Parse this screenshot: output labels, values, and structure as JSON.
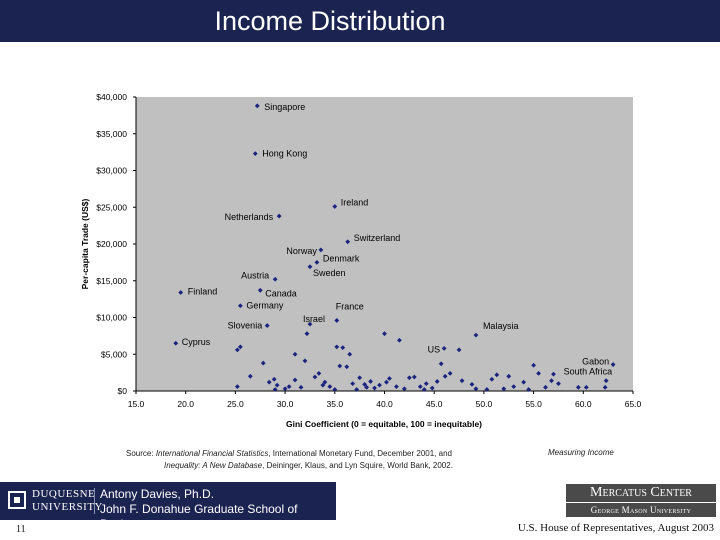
{
  "slide": {
    "title": "Income Distribution",
    "page_number": "11",
    "footer_note": "U.S. House of Representatives, August 2003"
  },
  "source": {
    "prefix": "Source:",
    "ref1": "International Financial Statistics",
    "ref1_rest": ", International Monetary Fund, December 2001, and",
    "ref3": "Measuring Income",
    "ref2": "Inequality: A New Database",
    "ref2_rest": ", Deininger, Klaus, and Lyn Squire, World Bank, 2002."
  },
  "footer": {
    "institution_line1": "DUQUESNE",
    "institution_line2": "UNIVERSITY",
    "author_line1": "Antony Davies, Ph.D.",
    "author_line2": "John F. Donahue Graduate School of Business",
    "center_line1": "Mercatus Center",
    "center_line2": "George Mason University"
  },
  "colors": {
    "title_bar": "#1b2450",
    "plot_area": "#c0c0c0",
    "marker": "#1a237e"
  },
  "chart_data": {
    "type": "scatter",
    "title": "",
    "xlabel": "Gini Coefficient (0 = equitable, 100 = inequitable)",
    "ylabel": "Per-capita Trade (US$)",
    "xlim": [
      15,
      65
    ],
    "ylim": [
      0,
      40000
    ],
    "x_ticks": [
      15,
      20,
      25,
      30,
      35,
      40,
      45,
      50,
      55,
      60,
      65
    ],
    "x_tick_labels": [
      "15.0",
      "20.0",
      "25.0",
      "30.0",
      "35.0",
      "40.0",
      "45.0",
      "50.0",
      "55.0",
      "60.0",
      "65.0"
    ],
    "y_ticks": [
      0,
      5000,
      10000,
      15000,
      20000,
      25000,
      30000,
      35000,
      40000
    ],
    "y_tick_labels": [
      "$0",
      "$5,000",
      "$10,000",
      "$15,000",
      "$20,000",
      "$25,000",
      "$30,000",
      "$35,000",
      "$40,000"
    ],
    "grid": false,
    "labeled_points": [
      {
        "label": "Singapore",
        "x": 27.2,
        "y": 38800
      },
      {
        "label": "Hong Kong",
        "x": 27.0,
        "y": 32300
      },
      {
        "label": "Ireland",
        "x": 35.0,
        "y": 25100
      },
      {
        "label": "Netherlands",
        "x": 29.4,
        "y": 23800
      },
      {
        "label": "Switzerland",
        "x": 36.3,
        "y": 20300
      },
      {
        "label": "Norway",
        "x": 33.6,
        "y": 19200
      },
      {
        "label": "Denmark",
        "x": 33.2,
        "y": 17500
      },
      {
        "label": "Sweden",
        "x": 32.5,
        "y": 16900
      },
      {
        "label": "Austria",
        "x": 29.0,
        "y": 15200
      },
      {
        "label": "Finland",
        "x": 19.5,
        "y": 13400
      },
      {
        "label": "Canada",
        "x": 27.5,
        "y": 13700
      },
      {
        "label": "Germany",
        "x": 25.5,
        "y": 11600
      },
      {
        "label": "France",
        "x": 35.2,
        "y": 9600
      },
      {
        "label": "Israel",
        "x": 32.5,
        "y": 9100
      },
      {
        "label": "Slovenia",
        "x": 28.2,
        "y": 8900
      },
      {
        "label": "Malaysia",
        "x": 49.2,
        "y": 7600
      },
      {
        "label": "Cyprus",
        "x": 19.0,
        "y": 6500
      },
      {
        "label": "US",
        "x": 46.0,
        "y": 5800
      },
      {
        "label": "Gabon",
        "x": 63.0,
        "y": 3600
      },
      {
        "label": "South Africa",
        "x": 62.3,
        "y": 1400
      }
    ],
    "points": [
      [
        25.5,
        6000
      ],
      [
        25.2,
        5600
      ],
      [
        27.8,
        3800
      ],
      [
        26.5,
        2000
      ],
      [
        25.2,
        600
      ],
      [
        28.4,
        1200
      ],
      [
        29.2,
        800
      ],
      [
        30.4,
        600
      ],
      [
        31.0,
        5000
      ],
      [
        32.0,
        4100
      ],
      [
        32.2,
        7800
      ],
      [
        33.0,
        1900
      ],
      [
        33.4,
        2400
      ],
      [
        31.6,
        500
      ],
      [
        34.0,
        1200
      ],
      [
        34.5,
        600
      ],
      [
        35.5,
        3400
      ],
      [
        35.2,
        6000
      ],
      [
        35.8,
        5900
      ],
      [
        36.2,
        3300
      ],
      [
        36.5,
        5000
      ],
      [
        36.8,
        1000
      ],
      [
        37.5,
        1800
      ],
      [
        38.2,
        500
      ],
      [
        38.6,
        1300
      ],
      [
        39.0,
        400
      ],
      [
        39.5,
        800
      ],
      [
        40.0,
        7800
      ],
      [
        40.5,
        1700
      ],
      [
        41.2,
        600
      ],
      [
        41.5,
        6900
      ],
      [
        42.0,
        300
      ],
      [
        42.5,
        1800
      ],
      [
        43.0,
        1900
      ],
      [
        43.6,
        600
      ],
      [
        44.2,
        1000
      ],
      [
        44.8,
        400
      ],
      [
        45.3,
        1300
      ],
      [
        45.7,
        3700
      ],
      [
        46.1,
        2000
      ],
      [
        47.5,
        5600
      ],
      [
        47.8,
        1400
      ],
      [
        48.8,
        900
      ],
      [
        49.2,
        300
      ],
      [
        50.3,
        200
      ],
      [
        50.8,
        1600
      ],
      [
        51.3,
        2200
      ],
      [
        52.5,
        2000
      ],
      [
        54.0,
        1200
      ],
      [
        54.5,
        200
      ],
      [
        55.0,
        3500
      ],
      [
        55.5,
        2400
      ],
      [
        56.2,
        500
      ],
      [
        57.0,
        2300
      ],
      [
        57.5,
        1000
      ],
      [
        59.5,
        500
      ],
      [
        60.3,
        500
      ],
      [
        62.2,
        500
      ],
      [
        30.0,
        300
      ],
      [
        29.0,
        200
      ],
      [
        33.8,
        800
      ],
      [
        35.0,
        200
      ],
      [
        40.2,
        1200
      ],
      [
        44.0,
        200
      ],
      [
        53.0,
        600
      ],
      [
        56.8,
        1400
      ],
      [
        38.0,
        900
      ],
      [
        31.0,
        1500
      ],
      [
        28.9,
        1600
      ],
      [
        37.2,
        200
      ],
      [
        46.6,
        2400
      ],
      [
        52.0,
        300
      ]
    ]
  }
}
